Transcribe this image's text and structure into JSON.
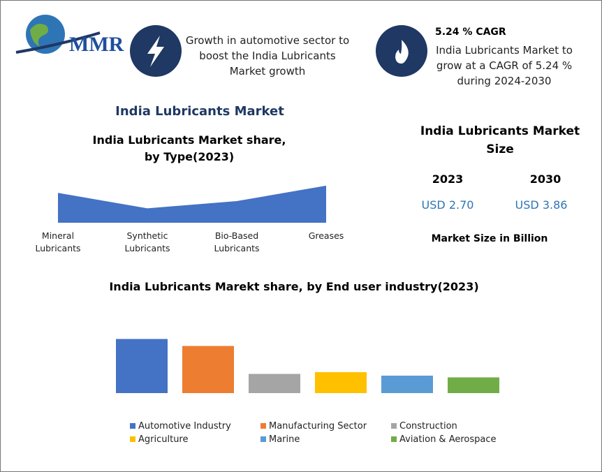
{
  "logo": "MMR",
  "header": {
    "growth_text": "Growth in automotive sector to boost the India Lubricants Market growth",
    "cagr_title": "5.24 % CAGR",
    "cagr_text": "India Lubricants Market to grow at a CAGR of 5.24 % during 2024-2030"
  },
  "market_title": "India Lubricants Market",
  "size_panel": {
    "title": "India Lubricants Market Size",
    "years": [
      "2023",
      "2030"
    ],
    "values": [
      "USD 2.70",
      "USD 3.86"
    ],
    "note": "Market Size in Billion"
  },
  "chart_data": [
    {
      "type": "area",
      "title": "India Lubricants Market share, by Type(2023)",
      "categories": [
        "Mineral Lubricants",
        "Synthetic Lubricants",
        "Bio-Based Lubricants",
        "Greases"
      ],
      "values": [
        29,
        14,
        21,
        36
      ],
      "color": "#4472c4",
      "ylim": [
        0,
        40
      ]
    },
    {
      "type": "bar",
      "title": "India Lubricants Marekt share, by End user industry(2023)",
      "categories": [
        "Automotive Industry",
        "Manufacturing Sector",
        "Construction",
        "Agriculture",
        "Marine",
        "Aviation & Aerospace"
      ],
      "values": [
        31,
        27,
        11,
        12,
        10,
        9
      ],
      "colors": [
        "#4472c4",
        "#ed7d31",
        "#a5a5a5",
        "#ffc000",
        "#5b9bd5",
        "#70ad47"
      ],
      "ylim": [
        0,
        32
      ]
    }
  ]
}
